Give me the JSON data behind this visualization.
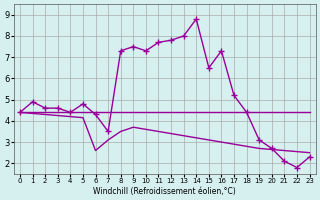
{
  "xlabel": "Windchill (Refroidissement éolien,°C)",
  "ylabel": "",
  "background_color": "#d6f0f0",
  "line_color": "#990099",
  "grid_color": "#aaaaaa",
  "xlim": [
    0,
    23
  ],
  "ylim": [
    1.5,
    9.5
  ],
  "xticks": [
    0,
    1,
    2,
    3,
    4,
    5,
    6,
    7,
    8,
    9,
    10,
    11,
    12,
    13,
    14,
    15,
    16,
    17,
    18,
    19,
    20,
    21,
    22,
    23
  ],
  "yticks": [
    2,
    3,
    4,
    5,
    6,
    7,
    8,
    9
  ],
  "line1_x": [
    0,
    1,
    2,
    3,
    4,
    5,
    6,
    7,
    8,
    9,
    10,
    11,
    12,
    13,
    14,
    15,
    16,
    17,
    18,
    19,
    20,
    21,
    22,
    23
  ],
  "line1_y": [
    4.4,
    4.9,
    4.6,
    4.6,
    4.4,
    4.8,
    4.3,
    3.5,
    7.3,
    7.5,
    7.3,
    7.7,
    7.8,
    8.0,
    8.8,
    6.5,
    7.3,
    5.2,
    4.4,
    3.1,
    2.7,
    2.1,
    1.8,
    2.3
  ],
  "line2_x": [
    0,
    1,
    2,
    3,
    4,
    5,
    6,
    7,
    8,
    9,
    10,
    11,
    12,
    13,
    14,
    15,
    16,
    17,
    18,
    19,
    20,
    21,
    22,
    23
  ],
  "line2_y": [
    4.4,
    4.4,
    4.4,
    4.4,
    4.4,
    4.4,
    4.4,
    4.4,
    4.4,
    4.4,
    4.4,
    4.4,
    4.4,
    4.4,
    4.4,
    4.4,
    4.4,
    4.4,
    4.4,
    4.4,
    4.4,
    4.4,
    4.4,
    4.4
  ],
  "line3_x": [
    0,
    1,
    2,
    3,
    4,
    5,
    6,
    7,
    8,
    9,
    10,
    11,
    12,
    13,
    14,
    15,
    16,
    17,
    18,
    19,
    20,
    21,
    22,
    23
  ],
  "line3_y": [
    4.4,
    4.35,
    4.3,
    4.25,
    4.2,
    4.15,
    2.6,
    3.1,
    3.5,
    3.7,
    3.6,
    3.5,
    3.4,
    3.3,
    3.2,
    3.1,
    3.0,
    2.9,
    2.8,
    2.7,
    2.65,
    2.6,
    2.55,
    2.5
  ]
}
